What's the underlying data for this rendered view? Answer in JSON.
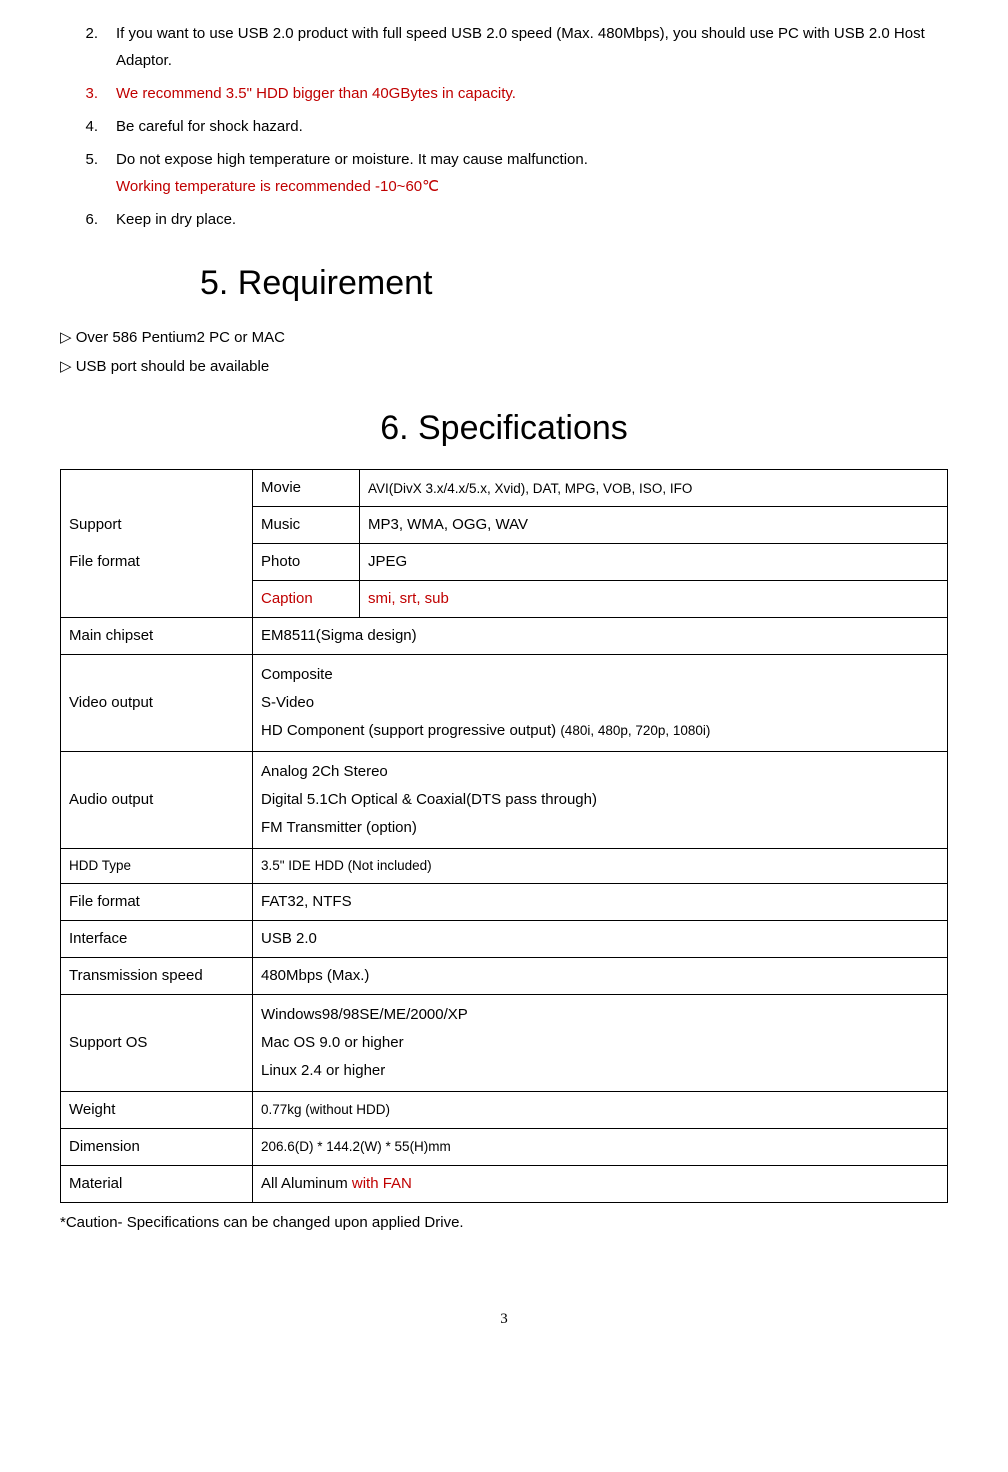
{
  "items": [
    {
      "num": "2.",
      "text_a": "If you want to use USB 2.0 product with full speed USB 2.0 speed (Max. 480Mbps), you should use PC with USB 2.0 Host Adaptor.",
      "red": false
    },
    {
      "num": "3.",
      "text_a": "We recommend 3.5\" HDD bigger than 40GBytes in capacity.",
      "red": true
    },
    {
      "num": "4.",
      "text_a": "Be careful for shock hazard.",
      "red": false
    },
    {
      "num": "5.",
      "text_a": "Do not expose high temperature or moisture. It may cause malfunction.",
      "red": false,
      "text_b": "Working temperature is recommended -10~60℃",
      "text_b_red": true
    },
    {
      "num": "6.",
      "text_a": "Keep in dry place.",
      "red": false
    }
  ],
  "sec5_title": "5.    Requirement",
  "req1": "▷ Over 586 Pentium2 PC or MAC",
  "req2": "▷ USB port should be available",
  "sec6_title": "6. Specifications",
  "spec": {
    "support_label": "Support",
    "fileformat_label": "File format",
    "movie_label": "Movie",
    "movie_val": "AVI(DivX 3.x/4.x/5.x, Xvid), DAT, MPG, VOB, ISO, IFO",
    "music_label": "Music",
    "music_val": "MP3, WMA, OGG, WAV",
    "photo_label": "Photo",
    "photo_val": "JPEG",
    "caption_label": "Caption",
    "caption_val": "smi, srt, sub",
    "mainchip_label": "Main chipset",
    "mainchip_val": "EM8511(Sigma design)",
    "video_label": "Video output",
    "video_l1": "Composite",
    "video_l2": "S-Video",
    "video_l3a": "HD Component (support progressive output) ",
    "video_l3b": "(480i, 480p, 720p, 1080i)",
    "audio_label": "Audio output",
    "audio_l1": "Analog 2Ch Stereo",
    "audio_l2": "Digital 5.1Ch Optical & Coaxial(DTS pass through)",
    "audio_l3": "FM Transmitter (option)",
    "hdd_label": "HDD Type",
    "hdd_val": "3.5\" IDE HDD (Not included)",
    "ff2_label": "File format",
    "ff2_val": "FAT32, NTFS",
    "iface_label": "Interface",
    "iface_val": "USB 2.0",
    "trans_label": "Transmission speed",
    "trans_val": "480Mbps (Max.)",
    "os_label": "Support OS",
    "os_l1": "Windows98/98SE/ME/2000/XP",
    "os_l2": "Mac OS 9.0 or higher",
    "os_l3": "Linux 2.4 or higher",
    "weight_label": "Weight",
    "weight_val": "0.77kg (without HDD)",
    "dim_label": "Dimension",
    "dim_val": "206.6(D) * 144.2(W) * 55(H)mm",
    "mat_label": "Material",
    "mat_val_a": "All Aluminum ",
    "mat_val_b": "with FAN"
  },
  "caution": "*Caution- Specifications can be changed upon applied Drive.",
  "pagenum": "3"
}
